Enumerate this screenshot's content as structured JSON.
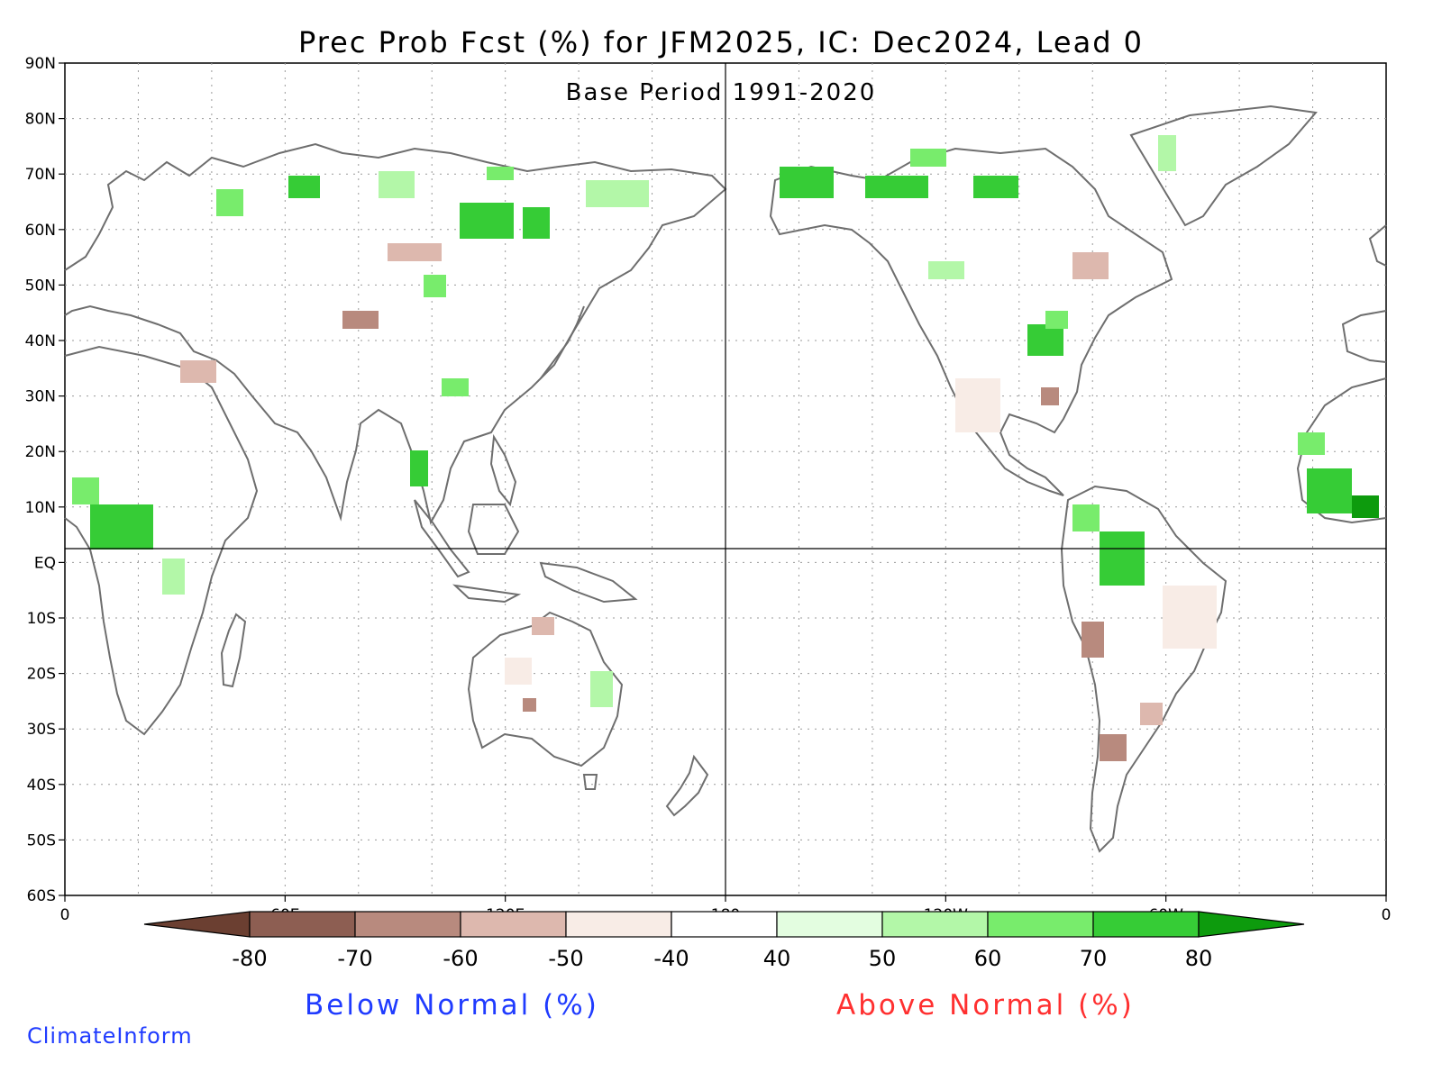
{
  "title": "Prec Prob Fcst (%) for JFM2025, IC: Dec2024, Lead 0",
  "subtitle": "Base Period 1991-2020",
  "lat_labels": [
    "90N",
    "80N",
    "70N",
    "60N",
    "50N",
    "40N",
    "30N",
    "20N",
    "10N",
    "EQ",
    "10S",
    "20S",
    "30S",
    "40S",
    "50S",
    "60S"
  ],
  "lon_labels": [
    "0",
    "60E",
    "120E",
    "180",
    "120W",
    "60W",
    "0"
  ],
  "colorbar": {
    "labels": [
      "-80",
      "-70",
      "-60",
      "-50",
      "-40",
      "40",
      "50",
      "60",
      "70",
      "80"
    ],
    "colors": [
      "#6b3f31",
      "#8d5e52",
      "#b88a7e",
      "#ddb8ae",
      "#f8ece6",
      "#ffffff",
      "#e3fde0",
      "#b3f7a8",
      "#78ec6c",
      "#36cc36",
      "#0d9b0d"
    ]
  },
  "below_normal_label": "Below Normal (%)",
  "above_normal_label": "Above Normal (%)",
  "credit": "ClimateInform"
}
